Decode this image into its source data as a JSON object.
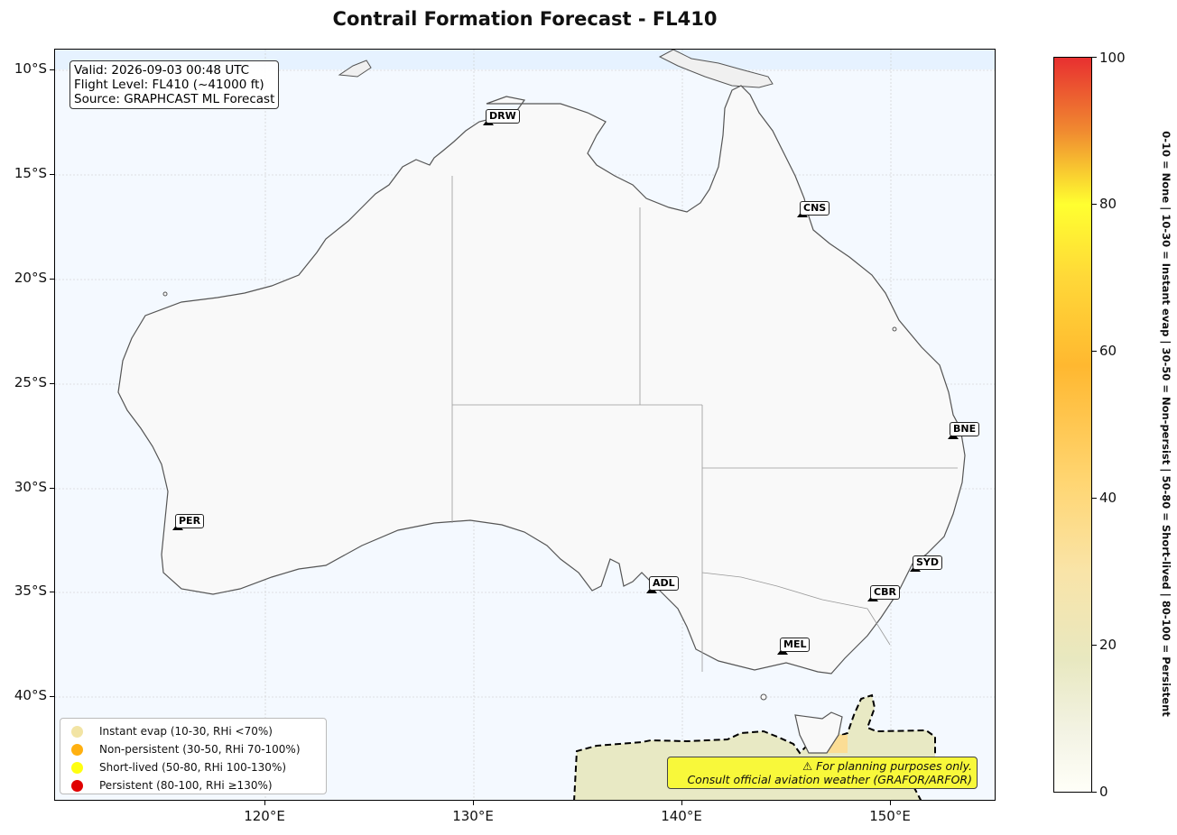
{
  "title": "Contrail Formation Forecast - FL410",
  "info": {
    "valid": "Valid: 2026-09-03 00:48 UTC",
    "flight_level": "Flight Level: FL410 (~41000 ft)",
    "source": "Source: GRAPHCAST ML Forecast"
  },
  "y_axis": {
    "labels": [
      "10°S",
      "15°S",
      "20°S",
      "25°S",
      "30°S",
      "35°S",
      "40°S"
    ]
  },
  "x_axis": {
    "labels": [
      "120°E",
      "130°E",
      "140°E",
      "150°E"
    ]
  },
  "airports": [
    {
      "code": "DRW",
      "lon": 130.8,
      "lat": -12.4
    },
    {
      "code": "CNS",
      "lon": 145.7,
      "lat": -16.9
    },
    {
      "code": "BNE",
      "lon": 153.1,
      "lat": -27.4
    },
    {
      "code": "PER",
      "lon": 115.9,
      "lat": -31.9
    },
    {
      "code": "SYD",
      "lon": 151.2,
      "lat": -33.9
    },
    {
      "code": "CBR",
      "lon": 149.2,
      "lat": -35.3
    },
    {
      "code": "ADL",
      "lon": 138.5,
      "lat": -34.9
    },
    {
      "code": "MEL",
      "lon": 144.8,
      "lat": -37.7
    }
  ],
  "legend": [
    {
      "label": "Instant evap (10-30, RHi <70%)",
      "color": "#f2e4a4"
    },
    {
      "label": "Non-persistent (30-50, RHi 70-100%)",
      "color": "#ffb010"
    },
    {
      "label": "Short-lived (50-80, RHi 100-130%)",
      "color": "#ffff10"
    },
    {
      "label": "Persistent (80-100, RHi ≥130%)",
      "color": "#e00000"
    }
  ],
  "warning": {
    "line1": "⚠ For planning purposes only.",
    "line2": "Consult official aviation weather (GRAFOR/ARFOR)"
  },
  "colorbar": {
    "range": [
      0,
      100
    ],
    "ticks": [
      "0",
      "20",
      "40",
      "60",
      "80",
      "100"
    ],
    "label": "0-10 = None  |  10-30 = Instant evap  |  30-50 = Non-persist  |  50-80 = Short-lived  |  80-100 = Persistent"
  },
  "colors": {
    "ocean": "#f4f9ff",
    "land": "#f9f9f9",
    "coast": "#555555"
  }
}
